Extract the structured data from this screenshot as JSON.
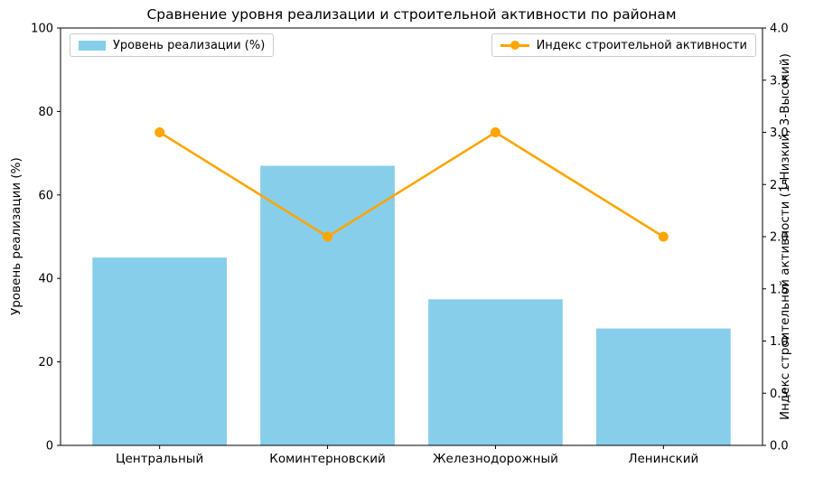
{
  "chart_data": {
    "type": "bar",
    "title": "Сравнение уровня реализации и строительной активности по районам",
    "categories": [
      "Центральный",
      "Коминтерновский",
      "Железнодорожный",
      "Ленинский"
    ],
    "series": [
      {
        "name": "Уровень реализации (%)",
        "type": "bar",
        "axis": "left",
        "color": "#87CEEB",
        "values": [
          45,
          67,
          35,
          28
        ]
      },
      {
        "name": "Индекс строительной активности",
        "type": "line",
        "axis": "right",
        "color": "#FFA500",
        "values": [
          3,
          2,
          3,
          2
        ]
      }
    ],
    "left_axis": {
      "label": "Уровень реализации (%)",
      "min": 0,
      "max": 100,
      "ticks": [
        0,
        20,
        40,
        60,
        80,
        100
      ],
      "tick_labels": [
        "0",
        "20",
        "40",
        "60",
        "80",
        "100"
      ]
    },
    "right_axis": {
      "label": "Индекс строительной активности (1-Низкий, 3-Высокий)",
      "min": 0,
      "max": 4,
      "ticks": [
        0,
        0.5,
        1,
        1.5,
        2,
        2.5,
        3,
        3.5,
        4
      ],
      "tick_labels": [
        "0.0",
        "0.5",
        "1.0",
        "1.5",
        "2.0",
        "2.5",
        "3.0",
        "3.5",
        "4.0"
      ]
    },
    "legend": [
      {
        "label": "Уровень реализации (%)",
        "marker": "patch",
        "color": "#87CEEB",
        "position": "upper-left"
      },
      {
        "label": "Индекс строительной активности",
        "marker": "line-dot",
        "color": "#FFA500",
        "position": "upper-right"
      }
    ],
    "grid": false,
    "background": "#ffffff",
    "text_color": "#000000",
    "spine_color": "#000000"
  }
}
